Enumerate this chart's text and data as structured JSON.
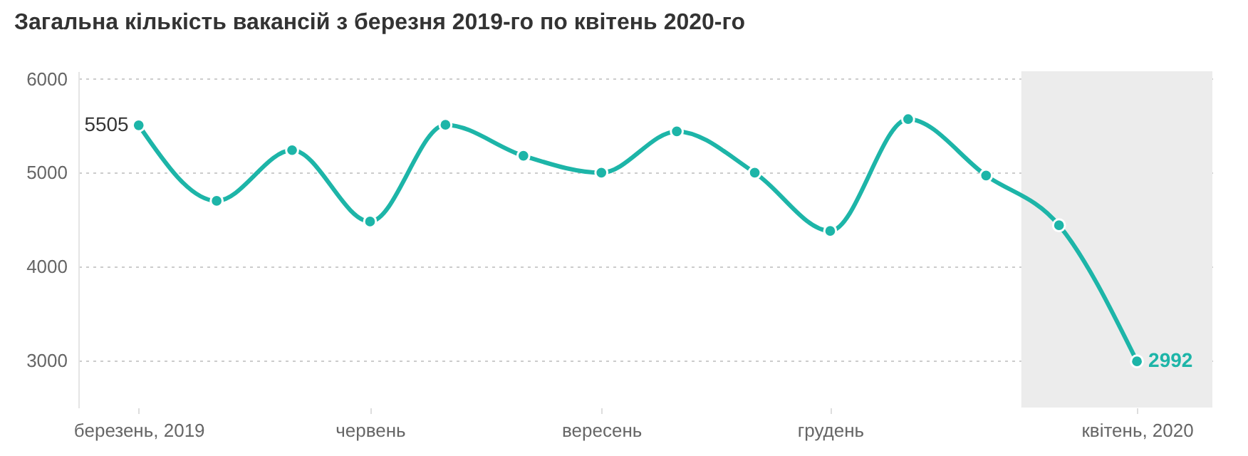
{
  "chart_data": {
    "type": "line",
    "title": "Загальна кількість вакансій з березня 2019-го по квітень 2020-го",
    "x": [
      "2019-03",
      "2019-04",
      "2019-05",
      "2019-06",
      "2019-07",
      "2019-08",
      "2019-09",
      "2019-10",
      "2019-11",
      "2019-12",
      "2020-01",
      "2020-02",
      "2020-03",
      "2020-04"
    ],
    "series": [
      {
        "color": "#1db5a8",
        "values": [
          5505,
          4700,
          5240,
          4480,
          5510,
          5180,
          5000,
          5440,
          5000,
          4380,
          5570,
          4970,
          4440,
          2992
        ],
        "value_labels": [
          "5505",
          null,
          null,
          null,
          null,
          null,
          null,
          null,
          null,
          null,
          null,
          null,
          null,
          "2992"
        ]
      }
    ],
    "xlim": [
      "2019-02-05",
      "2020-05-01"
    ],
    "xticks": [
      {
        "value": "2019-03",
        "label": "березень, 2019"
      },
      {
        "value": "2019-06",
        "label": "червень"
      },
      {
        "value": "2019-09",
        "label": "вересень"
      },
      {
        "value": "2019-12",
        "label": "грудень"
      },
      {
        "value": "2020-04",
        "label": "квітень, 2020"
      }
    ],
    "ylim": [
      2500,
      6080
    ],
    "yticks": [
      3000,
      4000,
      5000,
      6000
    ],
    "bands": [
      {
        "axis": "x",
        "from": "2020-02-15",
        "to": "2020-05-01",
        "color": "#ececec"
      }
    ],
    "grid": "y",
    "marker": "circle",
    "line_style": "solid"
  }
}
